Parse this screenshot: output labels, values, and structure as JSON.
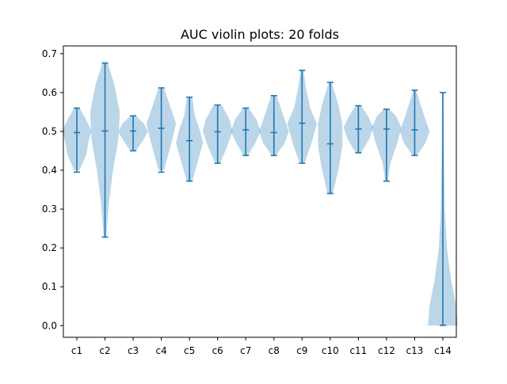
{
  "chart_data": {
    "type": "violin",
    "title": "AUC violin plots: 20 folds",
    "xlabel": "",
    "ylabel": "",
    "categories": [
      "c1",
      "c2",
      "c3",
      "c4",
      "c5",
      "c6",
      "c7",
      "c8",
      "c9",
      "c10",
      "c11",
      "c12",
      "c13",
      "c14"
    ],
    "ylim": [
      -0.03,
      0.72
    ],
    "yticks": [
      "0.0",
      "0.1",
      "0.2",
      "0.3",
      "0.4",
      "0.5",
      "0.6",
      "0.7"
    ],
    "grid": false,
    "violins": [
      {
        "category": "c1",
        "min": 0.395,
        "max": 0.56,
        "median": 0.497,
        "shape": [
          [
            0.4,
            0.02
          ],
          [
            0.44,
            0.07
          ],
          [
            0.48,
            0.09
          ],
          [
            0.5,
            0.11
          ],
          [
            0.53,
            0.07
          ],
          [
            0.56,
            0.02
          ]
        ]
      },
      {
        "category": "c2",
        "min": 0.228,
        "max": 0.676,
        "median": 0.501,
        "shape": [
          [
            0.23,
            0.01
          ],
          [
            0.32,
            0.03
          ],
          [
            0.4,
            0.06
          ],
          [
            0.48,
            0.1
          ],
          [
            0.55,
            0.11
          ],
          [
            0.62,
            0.07
          ],
          [
            0.676,
            0.02
          ]
        ]
      },
      {
        "category": "c3",
        "min": 0.45,
        "max": 0.54,
        "median": 0.501,
        "shape": [
          [
            0.45,
            0.02
          ],
          [
            0.48,
            0.08
          ],
          [
            0.5,
            0.11
          ],
          [
            0.52,
            0.08
          ],
          [
            0.54,
            0.02
          ]
        ]
      },
      {
        "category": "c4",
        "min": 0.395,
        "max": 0.612,
        "median": 0.508,
        "shape": [
          [
            0.4,
            0.02
          ],
          [
            0.45,
            0.06
          ],
          [
            0.49,
            0.09
          ],
          [
            0.52,
            0.11
          ],
          [
            0.56,
            0.07
          ],
          [
            0.612,
            0.02
          ]
        ]
      },
      {
        "category": "c5",
        "min": 0.372,
        "max": 0.588,
        "median": 0.476,
        "shape": [
          [
            0.372,
            0.02
          ],
          [
            0.42,
            0.06
          ],
          [
            0.47,
            0.1
          ],
          [
            0.5,
            0.08
          ],
          [
            0.54,
            0.04
          ],
          [
            0.588,
            0.02
          ]
        ]
      },
      {
        "category": "c6",
        "min": 0.418,
        "max": 0.568,
        "median": 0.499,
        "shape": [
          [
            0.42,
            0.02
          ],
          [
            0.46,
            0.07
          ],
          [
            0.5,
            0.11
          ],
          [
            0.53,
            0.09
          ],
          [
            0.568,
            0.03
          ]
        ]
      },
      {
        "category": "c7",
        "min": 0.438,
        "max": 0.56,
        "median": 0.504,
        "shape": [
          [
            0.44,
            0.02
          ],
          [
            0.47,
            0.07
          ],
          [
            0.5,
            0.11
          ],
          [
            0.53,
            0.08
          ],
          [
            0.56,
            0.02
          ]
        ]
      },
      {
        "category": "c8",
        "min": 0.438,
        "max": 0.592,
        "median": 0.497,
        "shape": [
          [
            0.44,
            0.02
          ],
          [
            0.47,
            0.08
          ],
          [
            0.5,
            0.11
          ],
          [
            0.54,
            0.07
          ],
          [
            0.592,
            0.02
          ]
        ]
      },
      {
        "category": "c9",
        "min": 0.418,
        "max": 0.657,
        "median": 0.521,
        "shape": [
          [
            0.42,
            0.02
          ],
          [
            0.47,
            0.07
          ],
          [
            0.52,
            0.11
          ],
          [
            0.56,
            0.06
          ],
          [
            0.61,
            0.03
          ],
          [
            0.657,
            0.01
          ]
        ]
      },
      {
        "category": "c10",
        "min": 0.34,
        "max": 0.626,
        "median": 0.468,
        "shape": [
          [
            0.34,
            0.02
          ],
          [
            0.4,
            0.06
          ],
          [
            0.46,
            0.09
          ],
          [
            0.52,
            0.09
          ],
          [
            0.57,
            0.06
          ],
          [
            0.626,
            0.01
          ]
        ]
      },
      {
        "category": "c11",
        "min": 0.445,
        "max": 0.566,
        "median": 0.506,
        "shape": [
          [
            0.445,
            0.02
          ],
          [
            0.48,
            0.08
          ],
          [
            0.51,
            0.11
          ],
          [
            0.54,
            0.07
          ],
          [
            0.566,
            0.02
          ]
        ]
      },
      {
        "category": "c12",
        "min": 0.372,
        "max": 0.557,
        "median": 0.506,
        "shape": [
          [
            0.372,
            0.01
          ],
          [
            0.42,
            0.03
          ],
          [
            0.47,
            0.08
          ],
          [
            0.51,
            0.11
          ],
          [
            0.54,
            0.07
          ],
          [
            0.557,
            0.02
          ]
        ]
      },
      {
        "category": "c13",
        "min": 0.438,
        "max": 0.606,
        "median": 0.504,
        "shape": [
          [
            0.44,
            0.02
          ],
          [
            0.47,
            0.08
          ],
          [
            0.5,
            0.11
          ],
          [
            0.54,
            0.07
          ],
          [
            0.606,
            0.01
          ]
        ]
      },
      {
        "category": "c14",
        "min": 0.001,
        "max": 0.6,
        "median": 0.001,
        "shape": [
          [
            0.0,
            0.11
          ],
          [
            0.05,
            0.1
          ],
          [
            0.12,
            0.06
          ],
          [
            0.2,
            0.03
          ],
          [
            0.3,
            0.015
          ],
          [
            0.45,
            0.008
          ],
          [
            0.6,
            0.005
          ]
        ]
      }
    ],
    "colors": {
      "fill": "#1f77b4",
      "line": "#1f77b4"
    }
  }
}
